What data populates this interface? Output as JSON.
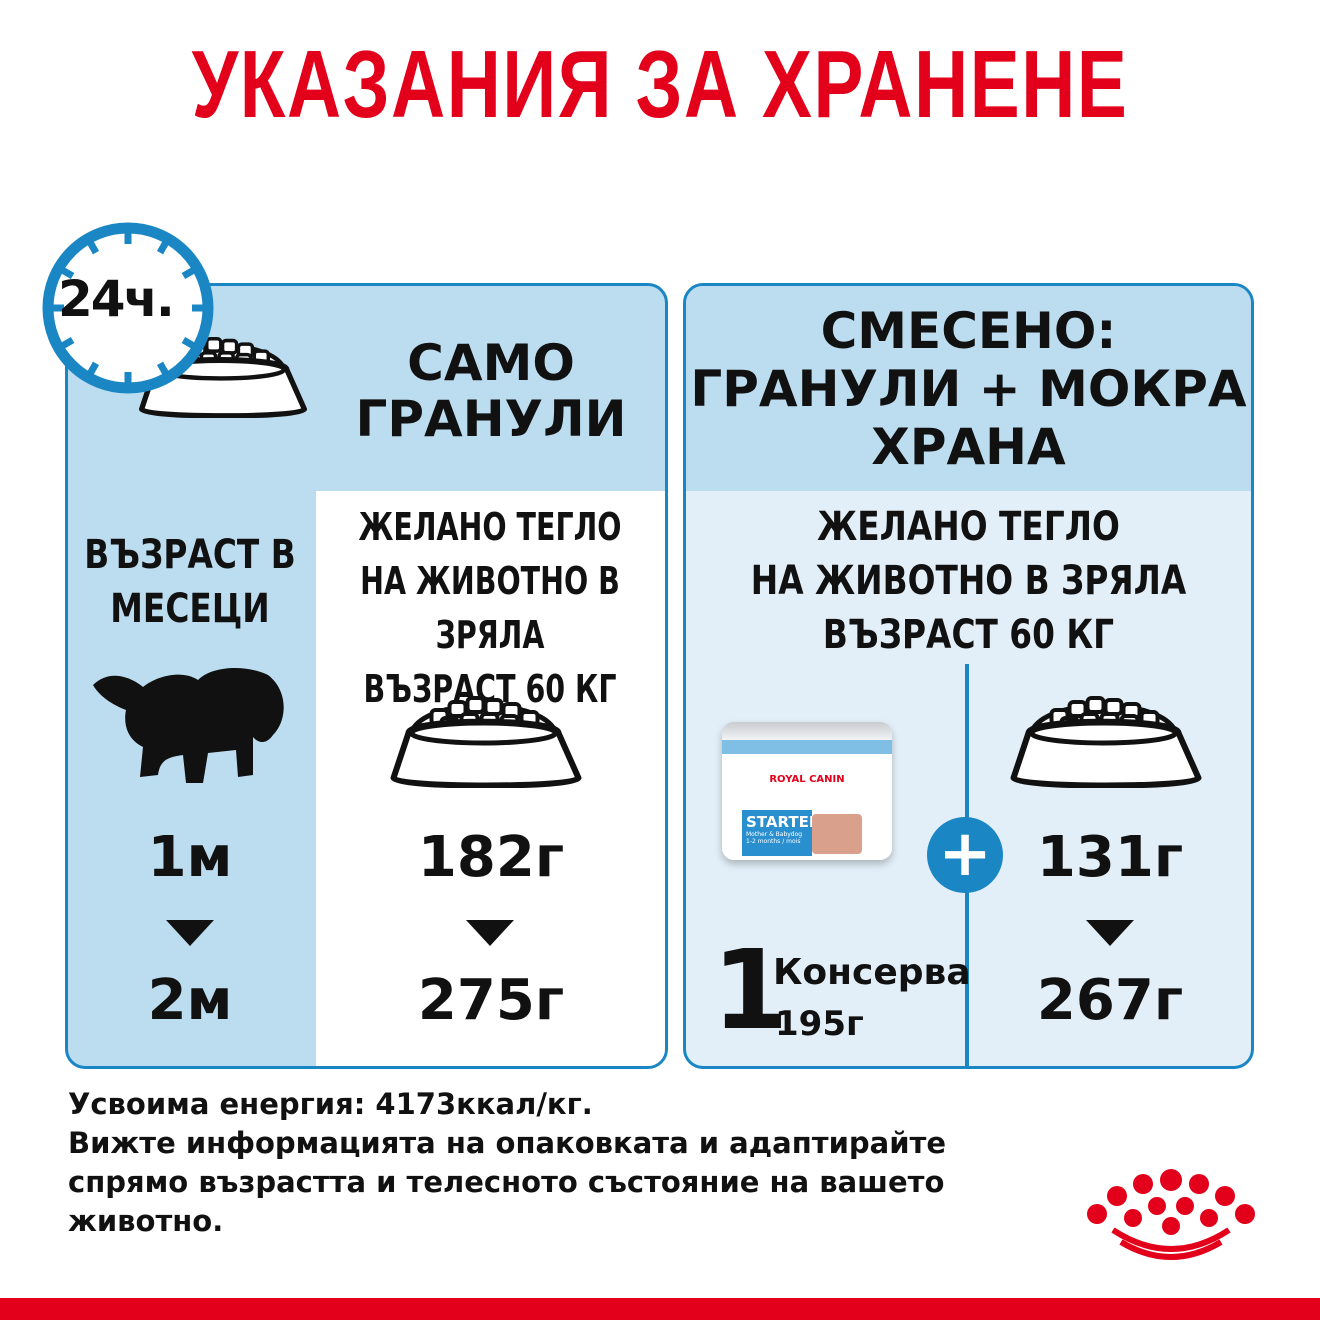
{
  "title": "УКАЗАНИЯ ЗА ХРАНЕНЕ",
  "clock": {
    "label": "24ч.",
    "icon": "clock-icon"
  },
  "colors": {
    "red": "#e2001a",
    "blue": "#1a86c4",
    "light_blue": "#bcdcef",
    "pale_blue": "#e3eff8"
  },
  "dry_only": {
    "heading": [
      "САМО",
      "ГРАНУЛИ"
    ],
    "age_label": [
      "ВЪЗРАСТ В",
      "МЕСЕЦИ"
    ],
    "weight_label": [
      "ЖЕЛАНО ТЕГЛО",
      "НА ЖИВОТНО В ЗРЯЛА",
      "ВЪЗРАСТ 60 КГ"
    ],
    "age_from": "1м",
    "age_to": "2м",
    "amount_from": "182г",
    "amount_to": "275г"
  },
  "mixed": {
    "heading": [
      "СМЕСЕНО:",
      "ГРАНУЛИ + МОКРА",
      "ХРАНА"
    ],
    "weight_label": [
      "ЖЕЛАНО ТЕГЛО",
      "НА ЖИВОТНО В ЗРЯЛА",
      "ВЪЗРАСТ 60 КГ"
    ],
    "can_count": "1",
    "can_label": "Консерва",
    "can_weight": "195г",
    "can_product": {
      "brand": "ROYAL CANIN",
      "name": "STARTER",
      "sub": "Mother & Babydog",
      "age": "1-2 months / mois"
    },
    "amount_from": "131г",
    "amount_to": "267г"
  },
  "footer": {
    "lines": [
      "Усвоима енергия: 4173ккал/кг.",
      "Вижте информацията на опаковката и адаптирайте",
      "спрямо възрастта и телесното състояние на вашето",
      "животно."
    ]
  }
}
